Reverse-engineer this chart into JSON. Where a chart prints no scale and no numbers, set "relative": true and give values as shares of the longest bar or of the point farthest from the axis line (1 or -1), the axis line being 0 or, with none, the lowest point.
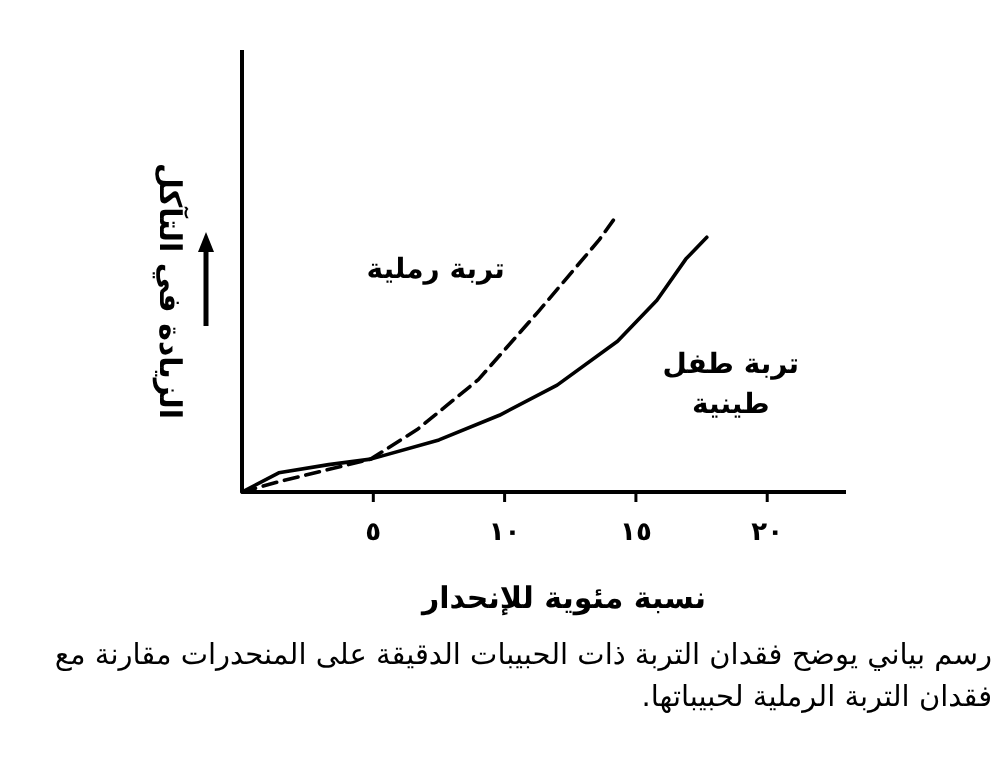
{
  "chart_data": {
    "type": "line",
    "relative": true,
    "tick_labels": "x",
    "xlabel": "نسبة مئوية للإنحدار",
    "ylabel": "الزيادة في التآكل",
    "xlim": [
      0,
      23
    ],
    "xticks": [
      {
        "value": 5,
        "label": "٥"
      },
      {
        "value": 10,
        "label": "١٠"
      },
      {
        "value": 15,
        "label": "١٥"
      },
      {
        "value": 20,
        "label": "٢٠"
      }
    ],
    "series": [
      {
        "name": "تربة رملية",
        "color": "#000000",
        "line_style": "dashed",
        "x": [
          0,
          1.5,
          4.9,
          6.7,
          9.0,
          11.3,
          13.6,
          14.2
        ],
        "values": [
          0,
          0.04,
          0.12,
          0.23,
          0.41,
          0.66,
          0.92,
          1.0
        ]
      },
      {
        "name": "تربة طفل طينية",
        "color": "#000000",
        "line_style": "solid",
        "x": [
          0,
          1.4,
          3.3,
          4.9,
          7.5,
          9.8,
          12.0,
          14.3,
          15.8,
          16.9,
          17.7
        ],
        "values": [
          0,
          0.07,
          0.1,
          0.12,
          0.19,
          0.28,
          0.39,
          0.55,
          0.7,
          0.85,
          0.93
        ]
      }
    ],
    "annotations": [
      "رسم بياني يوضح فقدان التربة ذات الحبيبات الدقيقة على المنحدرات مقارنة مع فقدان التربة الرملية لحبيباتها."
    ]
  }
}
